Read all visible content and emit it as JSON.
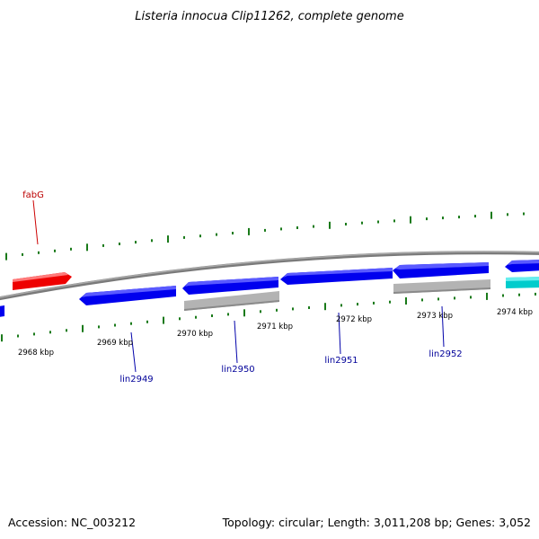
{
  "title": "Listeria innocua Clip11262, complete genome",
  "footer": {
    "accession": "Accession: NC_003212",
    "summary": "Topology: circular; Length: 3,011,208 bp; Genes: 3,052"
  },
  "colors": {
    "backbone": "#808080",
    "tick": "#1a7a1a",
    "forward_gene": "#0000ee",
    "rna_gene": "#b8b8b8",
    "trna_gene": "#00cccc",
    "highlight_gene": "#ff0000",
    "label_blue": "#000099",
    "label_red": "#bb0000"
  },
  "kbp_labels": [
    "2968 kbp",
    "2969 kbp",
    "2970 kbp",
    "2971 kbp",
    "2972 kbp",
    "2973 kbp",
    "2974 kbp"
  ],
  "gene_labels": [
    {
      "text": "fabG",
      "color": "red"
    },
    {
      "text": "lin2949",
      "color": "blue"
    },
    {
      "text": "lin2950",
      "color": "blue"
    },
    {
      "text": "lin2951",
      "color": "blue"
    },
    {
      "text": "lin2952",
      "color": "blue"
    }
  ]
}
